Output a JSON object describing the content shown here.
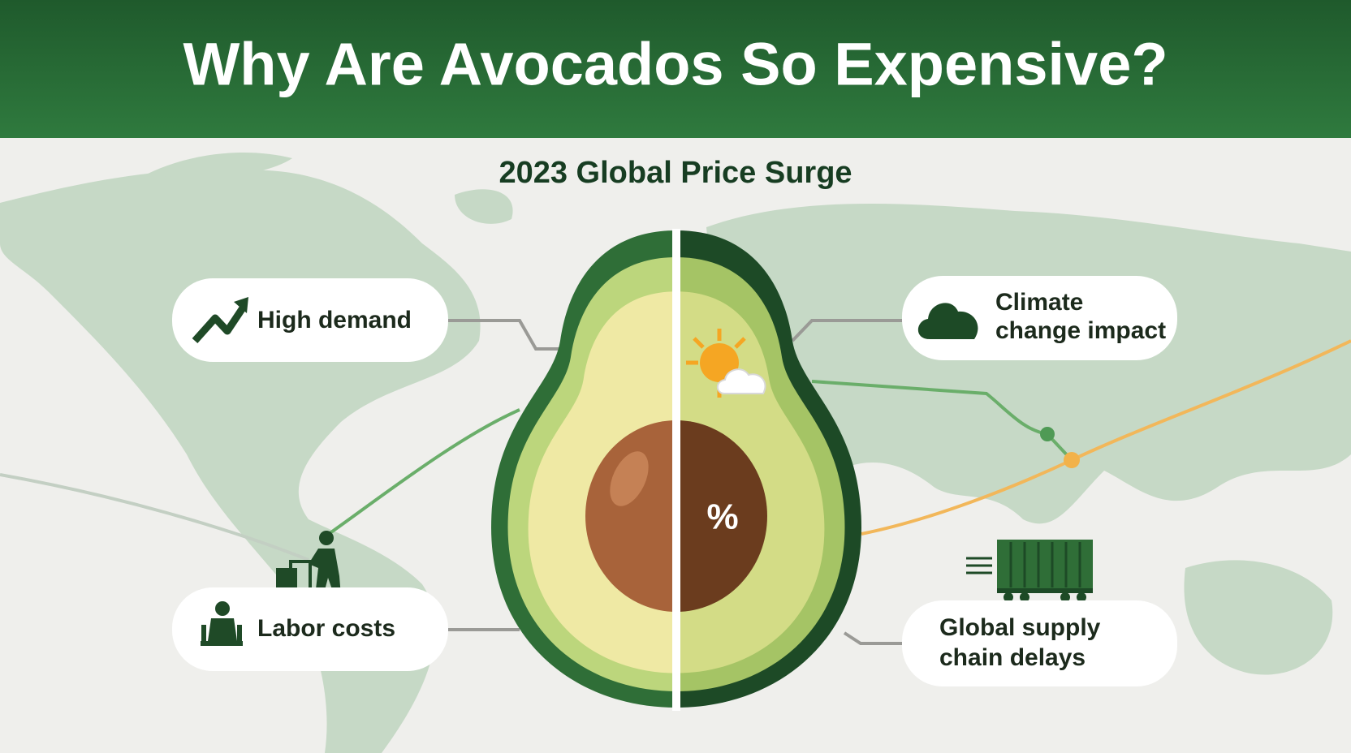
{
  "header": {
    "title": "Why Are Avocados So Expensive?"
  },
  "subtitle": "2023 Global Price Surge",
  "center": {
    "symbol": "%"
  },
  "cards": [
    {
      "lines": [
        "High demand"
      ]
    },
    {
      "lines": [
        "Climate",
        "change impact"
      ]
    },
    {
      "lines": [
        "Labor costs"
      ]
    },
    {
      "lines": [
        "Global supply",
        "chain delays"
      ]
    }
  ]
}
